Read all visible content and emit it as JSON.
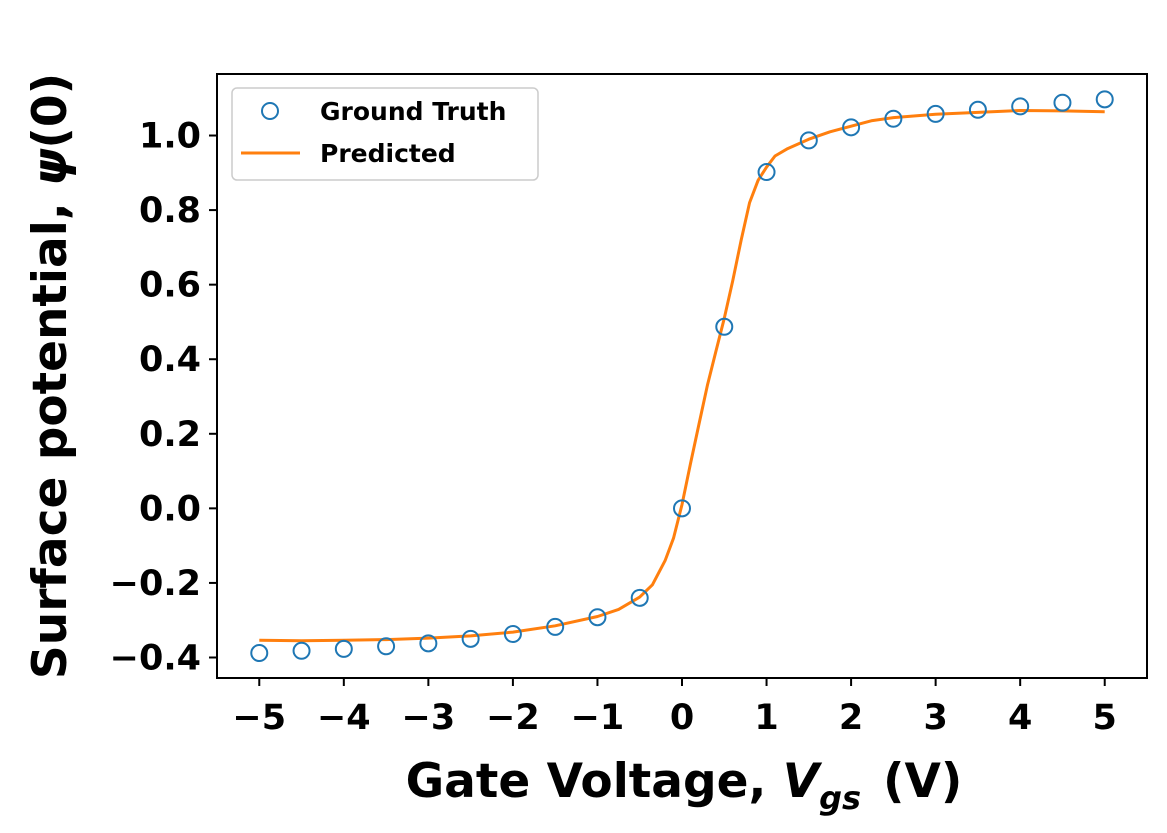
{
  "chart_data": {
    "type": "scatter",
    "xlabel": {
      "prefix": "Gate Voltage, ",
      "symbol": "V",
      "subscript": "gs",
      "suffix": "(V)"
    },
    "ylabel": {
      "prefix": "Surface potential, ",
      "symbol": "ψ",
      "suffix": "(0)"
    },
    "xlim": [
      -5.5,
      5.5
    ],
    "ylim": [
      -0.455,
      1.165
    ],
    "x_ticks": [
      -5,
      -4,
      -3,
      -2,
      -1,
      0,
      1,
      2,
      3,
      4,
      5
    ],
    "x_tick_labels": [
      "−5",
      "−4",
      "−3",
      "−2",
      "−1",
      "0",
      "1",
      "2",
      "3",
      "4",
      "5"
    ],
    "y_ticks": [
      -0.4,
      -0.2,
      0.0,
      0.2,
      0.4,
      0.6,
      0.8,
      1.0
    ],
    "y_tick_labels": [
      "−0.4",
      "−0.2",
      "0.0",
      "0.2",
      "0.4",
      "0.6",
      "0.8",
      "1.0"
    ],
    "grid": false,
    "legend_position": "top-left",
    "series": [
      {
        "name": "Ground Truth",
        "kind": "markers",
        "color": "#1f77b4",
        "x": [
          -5,
          -4.5,
          -4,
          -3.5,
          -3,
          -2.5,
          -2,
          -1.5,
          -1,
          -0.5,
          0,
          0.5,
          1,
          1.5,
          2,
          2.5,
          3,
          3.5,
          4,
          4.5,
          5
        ],
        "y": [
          -0.388,
          -0.382,
          -0.377,
          -0.37,
          -0.362,
          -0.35,
          -0.337,
          -0.318,
          -0.292,
          -0.24,
          0.0,
          0.487,
          0.902,
          0.987,
          1.022,
          1.045,
          1.058,
          1.069,
          1.078,
          1.088,
          1.097
        ]
      },
      {
        "name": "Predicted",
        "kind": "line",
        "color": "#ff7f0e",
        "x": [
          -5,
          -4.5,
          -4,
          -3.5,
          -3,
          -2.5,
          -2,
          -1.5,
          -1,
          -0.75,
          -0.5,
          -0.35,
          -0.2,
          -0.1,
          0,
          0.1,
          0.2,
          0.3,
          0.4,
          0.5,
          0.6,
          0.7,
          0.8,
          0.9,
          1.0,
          1.1,
          1.25,
          1.5,
          1.75,
          2.0,
          2.25,
          2.5,
          3.0,
          3.5,
          4.0,
          4.5,
          5.0
        ],
        "y": [
          -0.354,
          -0.355,
          -0.354,
          -0.352,
          -0.348,
          -0.342,
          -0.332,
          -0.315,
          -0.29,
          -0.271,
          -0.238,
          -0.205,
          -0.14,
          -0.08,
          0.01,
          0.12,
          0.225,
          0.33,
          0.42,
          0.51,
          0.61,
          0.72,
          0.82,
          0.88,
          0.915,
          0.945,
          0.965,
          0.99,
          1.01,
          1.025,
          1.04,
          1.048,
          1.057,
          1.062,
          1.067,
          1.066,
          1.064
        ]
      }
    ]
  }
}
